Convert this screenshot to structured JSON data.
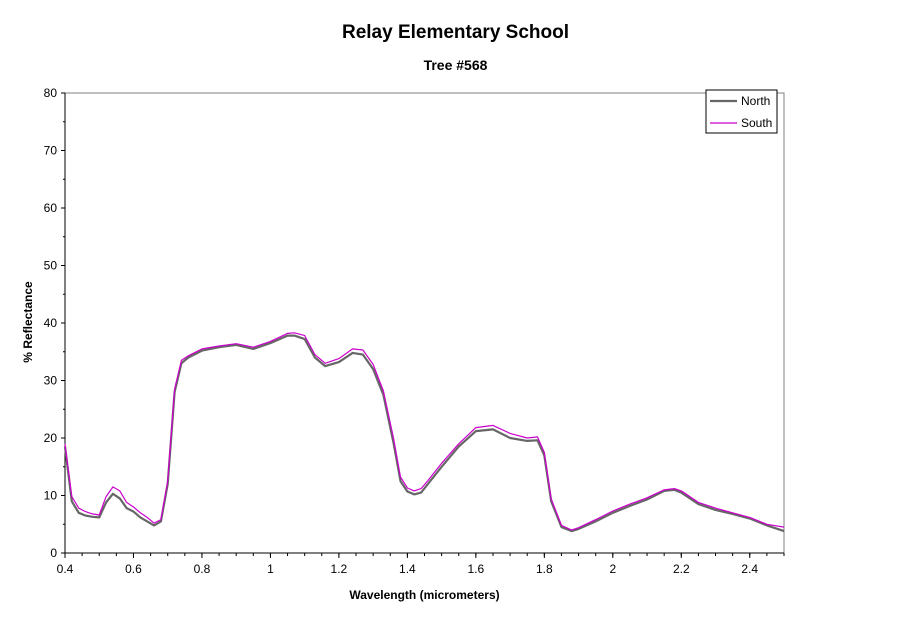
{
  "chart_data": {
    "type": "line",
    "title": "Relay Elementary School",
    "subtitle": "Tree #568",
    "xlabel": "Wavelength (micrometers)",
    "ylabel": "% Reflectance",
    "xlim": [
      0.4,
      2.5
    ],
    "ylim": [
      0,
      80
    ],
    "x_ticks": [
      "0.4",
      "0.6",
      "0.8",
      "1",
      "1.2",
      "1.4",
      "1.6",
      "1.8",
      "2",
      "2.2",
      "2.4"
    ],
    "x_tick_values": [
      0.4,
      0.6,
      0.8,
      1.0,
      1.2,
      1.4,
      1.6,
      1.8,
      2.0,
      2.2,
      2.4
    ],
    "y_ticks": [
      "0",
      "10",
      "20",
      "30",
      "40",
      "50",
      "60",
      "70",
      "80"
    ],
    "y_tick_values": [
      0,
      10,
      20,
      30,
      40,
      50,
      60,
      70,
      80
    ],
    "grid": false,
    "legend_position": "top-right",
    "series": [
      {
        "name": "North",
        "color": "#666666",
        "x": [
          0.4,
          0.42,
          0.44,
          0.46,
          0.48,
          0.5,
          0.52,
          0.54,
          0.56,
          0.58,
          0.6,
          0.62,
          0.64,
          0.66,
          0.68,
          0.7,
          0.72,
          0.74,
          0.76,
          0.8,
          0.85,
          0.9,
          0.95,
          1.0,
          1.05,
          1.07,
          1.1,
          1.13,
          1.16,
          1.2,
          1.24,
          1.27,
          1.3,
          1.33,
          1.36,
          1.38,
          1.4,
          1.42,
          1.44,
          1.46,
          1.5,
          1.55,
          1.6,
          1.65,
          1.7,
          1.75,
          1.78,
          1.8,
          1.82,
          1.85,
          1.88,
          1.9,
          1.95,
          2.0,
          2.05,
          2.1,
          2.15,
          2.18,
          2.2,
          2.25,
          2.3,
          2.35,
          2.4,
          2.45,
          2.5
        ],
        "y": [
          18.5,
          9.0,
          7.0,
          6.5,
          6.3,
          6.2,
          8.8,
          10.3,
          9.5,
          7.8,
          7.2,
          6.2,
          5.5,
          4.8,
          5.5,
          12.0,
          28.0,
          33.0,
          34.0,
          35.2,
          35.8,
          36.2,
          35.5,
          36.5,
          37.8,
          37.8,
          37.2,
          34.0,
          32.5,
          33.2,
          34.8,
          34.5,
          32.0,
          27.5,
          19.0,
          12.5,
          10.7,
          10.2,
          10.5,
          12.0,
          15.0,
          18.5,
          21.2,
          21.5,
          20.0,
          19.5,
          19.6,
          17.0,
          9.0,
          4.5,
          3.8,
          4.2,
          5.5,
          7.0,
          8.2,
          9.3,
          10.8,
          11.0,
          10.5,
          8.5,
          7.5,
          6.8,
          6.0,
          4.8,
          3.8
        ]
      },
      {
        "name": "South",
        "color": "#cc00cc",
        "x": [
          0.4,
          0.42,
          0.44,
          0.46,
          0.48,
          0.5,
          0.52,
          0.54,
          0.56,
          0.58,
          0.6,
          0.62,
          0.64,
          0.66,
          0.68,
          0.7,
          0.72,
          0.74,
          0.76,
          0.8,
          0.85,
          0.9,
          0.95,
          1.0,
          1.05,
          1.07,
          1.1,
          1.13,
          1.16,
          1.2,
          1.24,
          1.27,
          1.3,
          1.33,
          1.36,
          1.38,
          1.4,
          1.42,
          1.44,
          1.46,
          1.5,
          1.55,
          1.6,
          1.65,
          1.7,
          1.75,
          1.78,
          1.8,
          1.82,
          1.85,
          1.88,
          1.9,
          1.95,
          2.0,
          2.05,
          2.1,
          2.15,
          2.18,
          2.2,
          2.25,
          2.3,
          2.35,
          2.4,
          2.45,
          2.5
        ],
        "y": [
          19.0,
          9.8,
          7.8,
          7.2,
          6.8,
          6.6,
          9.8,
          11.5,
          10.8,
          8.8,
          8.0,
          7.0,
          6.2,
          5.2,
          5.8,
          12.5,
          28.5,
          33.5,
          34.3,
          35.5,
          36.0,
          36.4,
          35.8,
          36.8,
          38.2,
          38.3,
          37.8,
          34.5,
          33.0,
          33.8,
          35.5,
          35.3,
          32.8,
          28.2,
          19.8,
          13.2,
          11.3,
          10.8,
          11.2,
          12.6,
          15.6,
          19.0,
          21.8,
          22.2,
          20.8,
          20.0,
          20.2,
          17.5,
          9.4,
          4.8,
          4.0,
          4.4,
          5.8,
          7.3,
          8.5,
          9.6,
          11.0,
          11.2,
          10.8,
          8.8,
          7.8,
          7.0,
          6.2,
          5.0,
          4.5
        ]
      }
    ]
  }
}
